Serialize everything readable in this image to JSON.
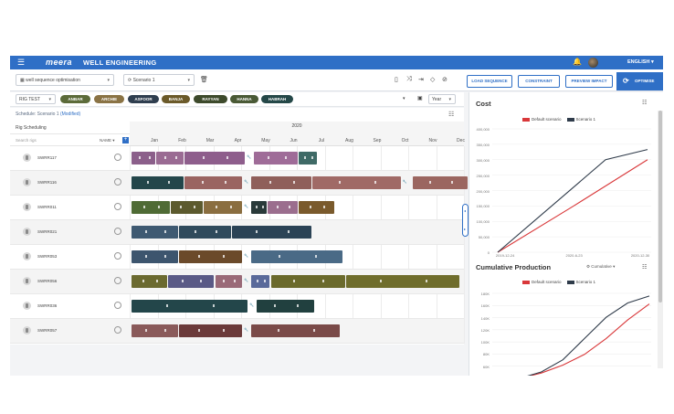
{
  "header": {
    "logo": "meera",
    "app_title": "WELL ENGINEERING",
    "language": "ENGLISH ▾"
  },
  "toolbar": {
    "project_select": "well sequence optimisation",
    "scenario_select": "Scenario 1",
    "load_sequence": "LOAD SEQUENCE",
    "constraint": "CONSTRAINT",
    "preview_impact": "PREVIEW IMPACT",
    "optimise": "OPTIMISE"
  },
  "filters": {
    "rig_select": "RIG TEST",
    "chips": [
      {
        "label": "ANBAR",
        "color": "#5c6b3a"
      },
      {
        "label": "ARCHIE",
        "color": "#8a7345"
      },
      {
        "label": "ASFOOR",
        "color": "#2f3e4f"
      },
      {
        "label": "BANJA",
        "color": "#6b5a2a"
      },
      {
        "label": "RAYYAN",
        "color": "#3d4a2c"
      },
      {
        "label": "HANNA",
        "color": "#4a5a36"
      },
      {
        "label": "HABRAH",
        "color": "#254848"
      }
    ],
    "view_select": "Year"
  },
  "gantt": {
    "scenario_label": "Schedule: Scenario 1",
    "modified_label": "(Modified)",
    "section_label": "Rig Scheduling",
    "search_placeholder": "Search rigs",
    "sort_label": "NAME",
    "year": "2020",
    "months": [
      "Jan",
      "Feb",
      "Mar",
      "Apr",
      "May",
      "Jun",
      "Jul",
      "Aug",
      "Sep",
      "Oct",
      "Nov",
      "Dec"
    ],
    "wells": [
      {
        "name": "SWRR117",
        "bars": [
          {
            "s": 0,
            "e": 0.9,
            "c": "#8b5f8a"
          },
          {
            "s": 0.9,
            "e": 1.9,
            "c": "#9a6b93"
          },
          {
            "s": 1.9,
            "e": 4.1,
            "c": "#8e5e8c"
          },
          {
            "s": 4.4,
            "e": 6.0,
            "c": "#9f6c98"
          },
          {
            "s": 6.0,
            "e": 6.7,
            "c": "#3f6a66"
          }
        ]
      },
      {
        "name": "SWRR116",
        "bars": [
          {
            "s": 0,
            "e": 1.9,
            "c": "#23464a"
          },
          {
            "s": 1.9,
            "e": 4.0,
            "c": "#9a6461"
          },
          {
            "s": 4.3,
            "e": 6.5,
            "c": "#8f5f5a"
          },
          {
            "s": 6.5,
            "e": 9.7,
            "c": "#a06a66"
          },
          {
            "s": 10.1,
            "e": 12.1,
            "c": "#9b6660"
          }
        ]
      },
      {
        "name": "SWRR011",
        "bars": [
          {
            "s": 0,
            "e": 1.4,
            "c": "#4f6b35"
          },
          {
            "s": 1.4,
            "e": 2.6,
            "c": "#5c5a2e"
          },
          {
            "s": 2.6,
            "e": 4.0,
            "c": "#8a6e40"
          },
          {
            "s": 4.3,
            "e": 4.9,
            "c": "#2a3a3a"
          },
          {
            "s": 4.9,
            "e": 6.0,
            "c": "#9b6e8e"
          },
          {
            "s": 6.0,
            "e": 7.3,
            "c": "#7a5a2c"
          }
        ]
      },
      {
        "name": "SWRR021",
        "bars": [
          {
            "s": 0,
            "e": 1.7,
            "c": "#3f5a72"
          },
          {
            "s": 1.7,
            "e": 3.6,
            "c": "#2f4a5c"
          },
          {
            "s": 3.6,
            "e": 6.5,
            "c": "#2b4356"
          }
        ]
      },
      {
        "name": "SWRR053",
        "bars": [
          {
            "s": 0,
            "e": 1.7,
            "c": "#3d556e"
          },
          {
            "s": 1.7,
            "e": 4.0,
            "c": "#6b4a2a"
          },
          {
            "s": 4.3,
            "e": 7.6,
            "c": "#4a6a86"
          }
        ]
      },
      {
        "name": "SWRR056",
        "bars": [
          {
            "s": 0,
            "e": 1.3,
            "c": "#6b6a30"
          },
          {
            "s": 1.3,
            "e": 3.0,
            "c": "#5a5a86"
          },
          {
            "s": 3.0,
            "e": 4.0,
            "c": "#9a6a78"
          },
          {
            "s": 4.3,
            "e": 5.0,
            "c": "#5a6a9a"
          },
          {
            "s": 5.0,
            "e": 7.7,
            "c": "#6b6a2c"
          },
          {
            "s": 7.7,
            "e": 11.8,
            "c": "#6f6d2c"
          }
        ]
      },
      {
        "name": "SWRR036",
        "bars": [
          {
            "s": 0,
            "e": 4.2,
            "c": "#23464a"
          },
          {
            "s": 4.5,
            "e": 6.6,
            "c": "#21403f"
          }
        ]
      },
      {
        "name": "SWRR057",
        "bars": [
          {
            "s": 0,
            "e": 1.7,
            "c": "#8a5a5a"
          },
          {
            "s": 1.7,
            "e": 4.0,
            "c": "#6b3a3a"
          },
          {
            "s": 4.3,
            "e": 7.5,
            "c": "#7a4a48"
          }
        ]
      }
    ]
  },
  "cost_card": {
    "title": "Cost",
    "legend": [
      {
        "label": "Default scenario",
        "color": "#d9383a"
      },
      {
        "label": "Scenario 1",
        "color": "#2f3b4a"
      }
    ],
    "y_ticks": [
      "400,000",
      "350,000",
      "300,000",
      "250,000",
      "200,000",
      "150,000",
      "100,000",
      "50,000",
      "0"
    ],
    "x_ticks": [
      "2019-12-24",
      "2020-6-23",
      "2020-12-30"
    ]
  },
  "production_card": {
    "title": "Cumulative Production",
    "mode_select": "Cumulative",
    "legend": [
      {
        "label": "Default scenario",
        "color": "#d9383a"
      },
      {
        "label": "Scenario 1",
        "color": "#2f3b4a"
      }
    ],
    "y_ticks": [
      "180K",
      "160K",
      "140K",
      "120K",
      "100K",
      "80K",
      "60K",
      "40K"
    ]
  },
  "chart_data": [
    {
      "type": "line",
      "title": "Cost",
      "x": [
        "2019-12-24",
        "2020-6-23",
        "2020-12-30"
      ],
      "series": [
        {
          "name": "Default scenario",
          "values": [
            0,
            148000,
            300000
          ]
        },
        {
          "name": "Scenario 1",
          "values": [
            0,
            178000,
            333000
          ]
        }
      ],
      "ylim": [
        0,
        400000
      ]
    },
    {
      "type": "line",
      "title": "Cumulative Production",
      "series": [
        {
          "name": "Default scenario",
          "values": [
            20000,
            30000,
            45000,
            65000,
            95000,
            130000,
            160000
          ]
        },
        {
          "name": "Scenario 1",
          "values": [
            20000,
            32000,
            55000,
            95000,
            135000,
            162000,
            175000
          ]
        }
      ],
      "ylim": [
        20000,
        180000
      ]
    }
  ]
}
